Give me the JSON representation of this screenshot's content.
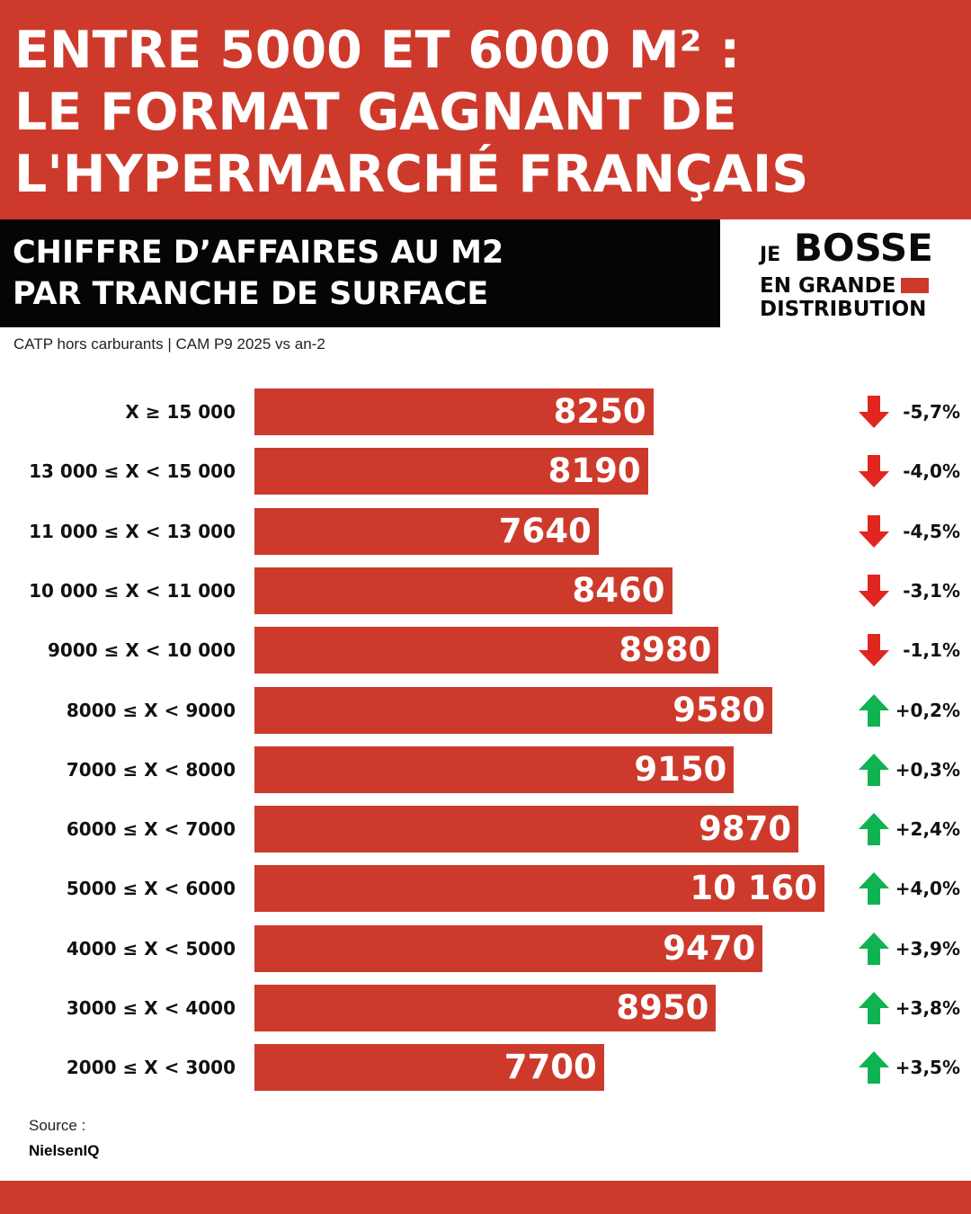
{
  "header": {
    "title_lines": [
      "ENTRE 5000 ET 6000 M² :",
      "LE FORMAT GAGNANT DE",
      "L'HYPERMARCHÉ FRANÇAIS"
    ]
  },
  "subheader": {
    "lines": [
      "CHIFFRE D’AFFAIRES AU M2",
      "PAR TRANCHE DE SURFACE"
    ]
  },
  "logo": {
    "je": "JE",
    "bosse": "BOSSE",
    "l2": "EN GRANDE",
    "l3": "DISTRIBUTION",
    "accent": "#cd3a2b"
  },
  "note": "CATP hors carburants | CAM P9 2025 vs an-2",
  "source": {
    "label": "Source :",
    "name": "NielsenIQ"
  },
  "colors": {
    "bar": "#cd3a2b",
    "down": "#e0261f",
    "up": "#10b351"
  },
  "chart_data": {
    "type": "bar",
    "orientation": "horizontal",
    "categories": [
      "X ≥ 15 000",
      "13 000 ≤ X < 15 000",
      "11 000 ≤ X < 13 000",
      "10 000 ≤ X < 11 000",
      "9000 ≤ X < 10 000",
      "8000 ≤ X < 9000",
      "7000 ≤ X < 8000",
      "6000 ≤ X < 7000",
      "5000 ≤ X < 6000",
      "4000 ≤ X < 5000",
      "3000 ≤ X < 4000",
      "2000 ≤ X < 3000"
    ],
    "values": [
      8250,
      8190,
      7640,
      8460,
      8980,
      9580,
      9150,
      9870,
      10160,
      9470,
      8950,
      7700
    ],
    "value_labels": [
      "8250",
      "8190",
      "7640",
      "8460",
      "8980",
      "9580",
      "9150",
      "9870",
      "10 160",
      "9470",
      "8950",
      "7700"
    ],
    "changes": [
      "-5,7%",
      "-4,0%",
      "-4,5%",
      "-3,1%",
      "-1,1%",
      "+0,2%",
      "+0,3%",
      "+2,4%",
      "+4,0%",
      "+3,9%",
      "+3,8%",
      "+3,5%"
    ],
    "directions": [
      "down",
      "down",
      "down",
      "down",
      "down",
      "up",
      "up",
      "up",
      "up",
      "up",
      "up",
      "up"
    ],
    "title": "",
    "xlabel": "",
    "ylabel": "",
    "grid": false
  }
}
